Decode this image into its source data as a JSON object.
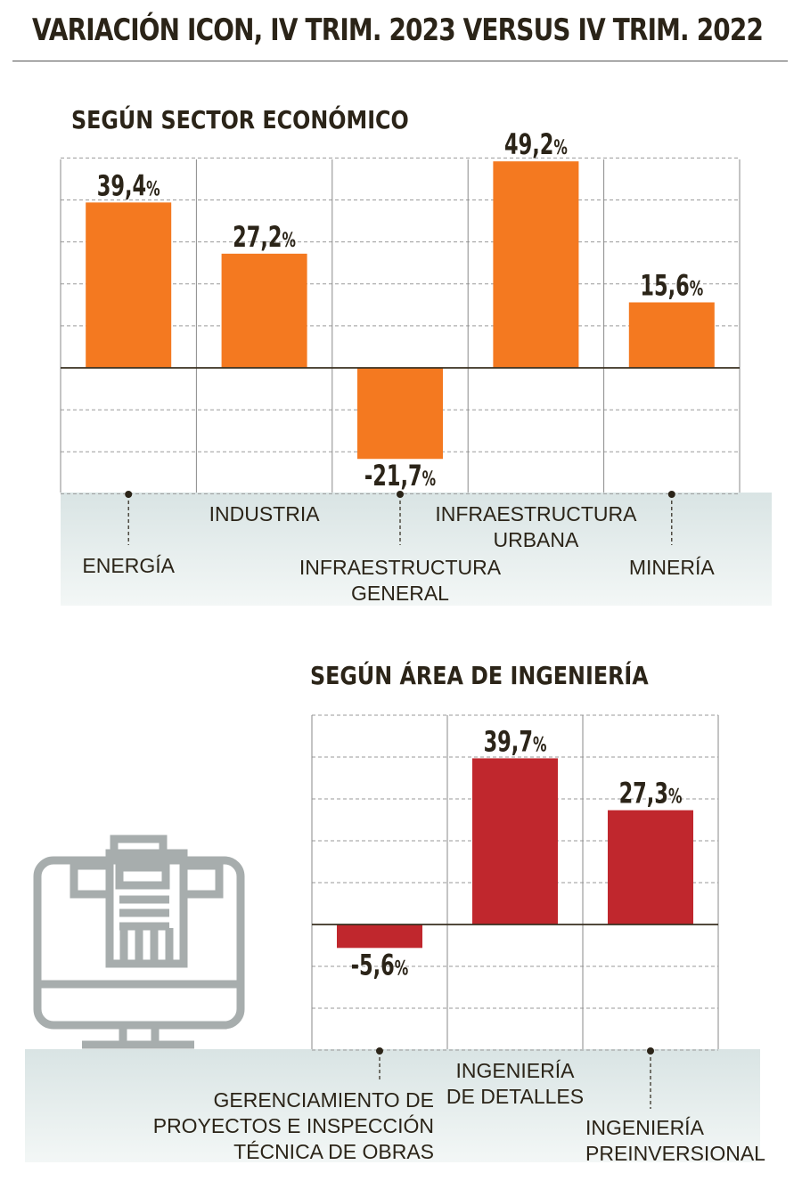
{
  "header": {
    "title": "VARIACIÓN ICON, IV TRIM. 2023 VERSUS IV TRIM. 2022"
  },
  "chart_data": [
    {
      "type": "bar",
      "title": "SEGÚN SECTOR ECONÓMICO",
      "categories": [
        "ENERGÍA",
        "INDUSTRIA",
        "INFRAESTRUCTURA GENERAL",
        "INFRAESTRUCTURA URBANA",
        "MINERÍA"
      ],
      "category_lines": [
        [
          "ENERGÍA"
        ],
        [
          "INDUSTRIA"
        ],
        [
          "INFRAESTRUCTURA",
          "GENERAL"
        ],
        [
          "INFRAESTRUCTURA",
          "URBANA"
        ],
        [
          "MINERÍA"
        ]
      ],
      "values": [
        39.4,
        27.2,
        -21.7,
        49.2,
        15.6
      ],
      "value_labels": [
        "39,4",
        "27,2",
        "-21,7",
        "49,2",
        "15,6"
      ],
      "unit": "%",
      "ylim": [
        -30,
        50
      ],
      "grid": true,
      "color": "#f47920"
    },
    {
      "type": "bar",
      "title": "SEGÚN ÁREA DE INGENIERÍA",
      "categories": [
        "GERENCIAMIENTO DE PROYECTOS E INSPECCIÓN TÉCNICA DE OBRAS",
        "INGENIERÍA DE DETALLES",
        "INGENIERÍA PREINVERSIONAL"
      ],
      "category_lines": [
        [
          "GERENCIAMIENTO DE",
          "PROYECTOS E INSPECCIÓN",
          "TÉCNICA DE OBRAS"
        ],
        [
          "INGENIERÍA",
          "DE DETALLES"
        ],
        [
          "INGENIERÍA",
          "PREINVERSIONAL"
        ]
      ],
      "values": [
        -5.6,
        39.7,
        27.3
      ],
      "value_labels": [
        "-5,6",
        "39,7",
        "27,3"
      ],
      "unit": "%",
      "ylim": [
        -30,
        50
      ],
      "grid": true,
      "color": "#c0272d"
    }
  ],
  "icon": "building-monitor-icon"
}
